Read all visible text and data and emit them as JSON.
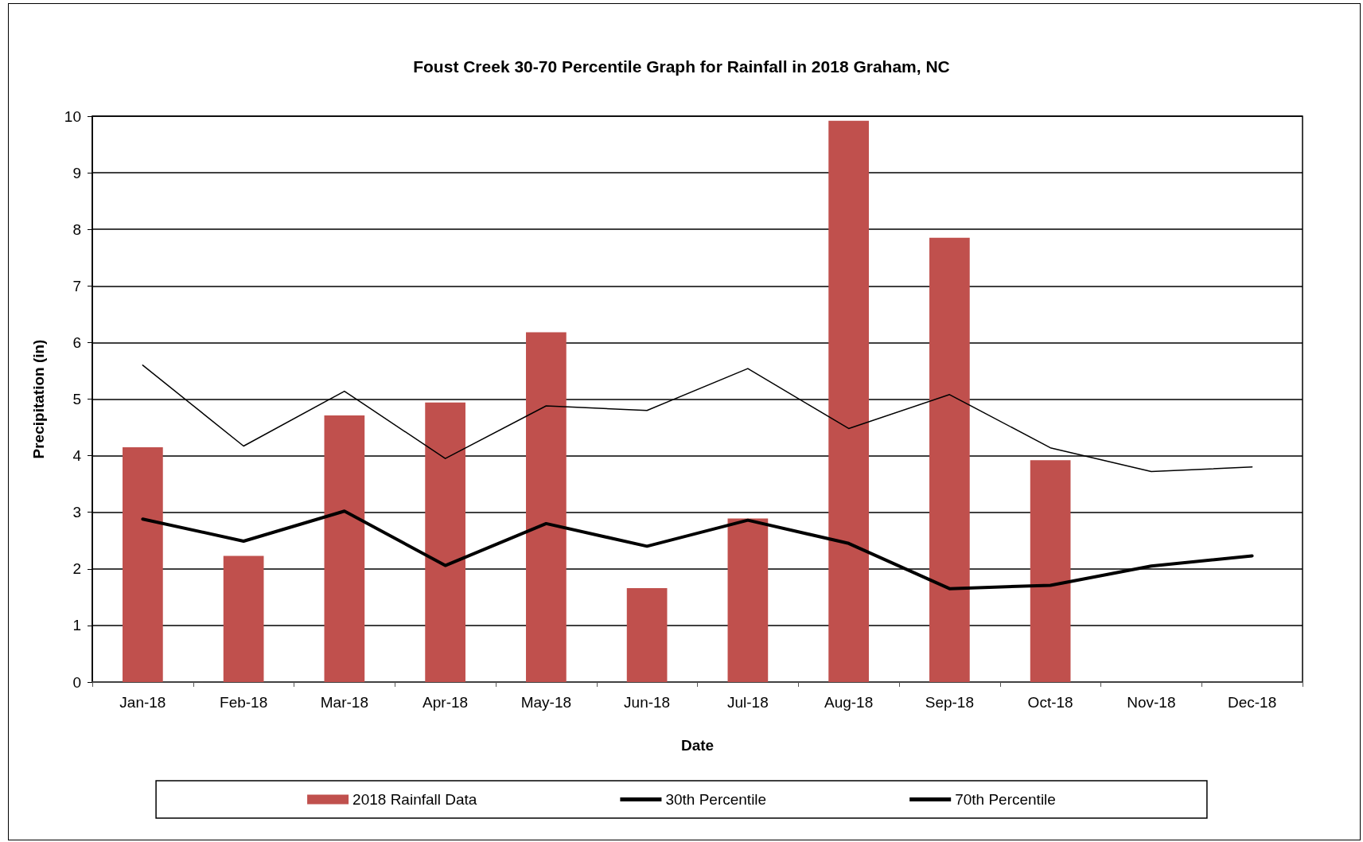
{
  "chart_data": {
    "type": "bar",
    "title": "Foust Creek 30-70 Percentile Graph for Rainfall in 2018 Graham, NC",
    "xlabel": "Date",
    "ylabel": "Precipitation (in)",
    "categories": [
      "Jan-18",
      "Feb-18",
      "Mar-18",
      "Apr-18",
      "May-18",
      "Jun-18",
      "Jul-18",
      "Aug-18",
      "Sep-18",
      "Oct-18",
      "Nov-18",
      "Dec-18"
    ],
    "series": [
      {
        "name": "2018 Rainfall Data",
        "color": "#c0504d",
        "values": [
          4.15,
          2.23,
          4.71,
          4.94,
          6.18,
          1.66,
          2.89,
          9.92,
          7.85,
          3.92,
          null,
          null
        ]
      },
      {
        "name": "30th Percentile",
        "type": "line",
        "color": "#000000",
        "values": [
          2.88,
          2.49,
          3.02,
          2.06,
          2.8,
          2.4,
          2.86,
          2.45,
          1.65,
          1.71,
          2.05,
          2.23
        ]
      },
      {
        "name": "70th Percentile",
        "type": "line",
        "color": "#000000",
        "values": [
          5.6,
          4.17,
          5.14,
          3.95,
          4.88,
          4.8,
          5.54,
          4.48,
          5.08,
          4.14,
          3.72,
          3.8
        ]
      }
    ],
    "ylim": [
      0,
      10
    ],
    "yticks": [
      0,
      1,
      2,
      3,
      4,
      5,
      6,
      7,
      8,
      9,
      10
    ],
    "grid": "y",
    "legend": "bottom",
    "marker": "none",
    "line_style": "solid"
  }
}
